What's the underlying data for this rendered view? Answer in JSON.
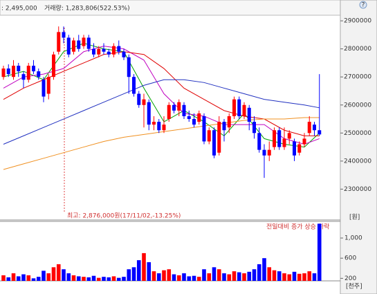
{
  "chart_data": {
    "type": "candlestick",
    "header": {
      "price": ": 2,495,000",
      "volume": "거래량: 1,283,806(522.53%)"
    },
    "price_unit": "[원]",
    "volume_unit": "[천주]",
    "annotation": "최고: 2,876,000원(17/11/02,-13.25%)",
    "volume_legend": "전일대비 증가 상승 하락",
    "up_color": "#ff0000",
    "down_color": "#0000ff",
    "open": [
      2700000,
      2730000,
      2700000,
      2740000,
      2710000,
      2690000,
      2740000,
      2720000,
      2690000,
      2640000,
      2700000,
      2790000,
      2860000,
      2840000,
      2790000,
      2830000,
      2810000,
      2840000,
      2800000,
      2780000,
      2800000,
      2790000,
      2780000,
      2810000,
      2790000,
      2770000,
      2700000,
      2640000,
      2600000,
      2610000,
      2530000,
      2540000,
      2510000,
      2550000,
      2600000,
      2580000,
      2600000,
      2560000,
      2550000,
      2540000,
      2560000,
      2470000,
      2510000,
      2430000,
      2540000,
      2520000,
      2560000,
      2620000,
      2560000,
      2590000,
      2540000,
      2500000,
      2440000,
      2420000,
      2450000,
      2510000,
      2450000,
      2480000,
      2470000,
      2430000,
      2460000,
      2500000,
      2530000,
      2510000
    ],
    "high": [
      2740000,
      2745000,
      2760000,
      2750000,
      2720000,
      2750000,
      2760000,
      2730000,
      2700000,
      2710000,
      2790000,
      2880000,
      2880000,
      2850000,
      2840000,
      2850000,
      2850000,
      2850000,
      2820000,
      2810000,
      2820000,
      2800000,
      2820000,
      2830000,
      2800000,
      2780000,
      2710000,
      2650000,
      2640000,
      2620000,
      2560000,
      2550000,
      2560000,
      2610000,
      2610000,
      2620000,
      2610000,
      2580000,
      2570000,
      2580000,
      2570000,
      2520000,
      2520000,
      2560000,
      2550000,
      2570000,
      2630000,
      2630000,
      2610000,
      2600000,
      2560000,
      2520000,
      2460000,
      2470000,
      2520000,
      2520000,
      2520000,
      2510000,
      2480000,
      2470000,
      2500000,
      2560000,
      2540000,
      2710000
    ],
    "low": [
      2690000,
      2700000,
      2690000,
      2700000,
      2660000,
      2680000,
      2710000,
      2690000,
      2610000,
      2620000,
      2690000,
      2780000,
      2820000,
      2770000,
      2780000,
      2790000,
      2800000,
      2790000,
      2770000,
      2770000,
      2780000,
      2770000,
      2770000,
      2780000,
      2760000,
      2640000,
      2630000,
      2590000,
      2520000,
      2510000,
      2510000,
      2500000,
      2500000,
      2540000,
      2570000,
      2560000,
      2550000,
      2540000,
      2520000,
      2530000,
      2460000,
      2460000,
      2410000,
      2420000,
      2470000,
      2500000,
      2550000,
      2550000,
      2550000,
      2510000,
      2480000,
      2430000,
      2340000,
      2400000,
      2440000,
      2440000,
      2440000,
      2460000,
      2400000,
      2420000,
      2450000,
      2490000,
      2490000,
      2490000
    ],
    "close": [
      2730000,
      2710000,
      2740000,
      2720000,
      2690000,
      2740000,
      2720000,
      2700000,
      2630000,
      2700000,
      2780000,
      2860000,
      2840000,
      2780000,
      2830000,
      2800000,
      2840000,
      2800000,
      2780000,
      2800000,
      2790000,
      2780000,
      2810000,
      2790000,
      2770000,
      2700000,
      2640000,
      2600000,
      2620000,
      2530000,
      2540000,
      2510000,
      2530000,
      2600000,
      2580000,
      2610000,
      2560000,
      2550000,
      2530000,
      2570000,
      2470000,
      2510000,
      2420000,
      2540000,
      2510000,
      2560000,
      2620000,
      2560000,
      2600000,
      2540000,
      2500000,
      2440000,
      2420000,
      2440000,
      2510000,
      2450000,
      2480000,
      2500000,
      2420000,
      2460000,
      2480000,
      2540000,
      2510000,
      2495000
    ],
    "volume": [
      260,
      220,
      300,
      240,
      280,
      260,
      200,
      230,
      350,
      300,
      420,
      480,
      380,
      300,
      260,
      240,
      230,
      220,
      250,
      210,
      230,
      220,
      240,
      210,
      230,
      380,
      420,
      560,
      700,
      520,
      340,
      300,
      360,
      380,
      280,
      260,
      300,
      240,
      250,
      230,
      380,
      300,
      420,
      380,
      300,
      280,
      340,
      320,
      300,
      330,
      380,
      480,
      600,
      420,
      360,
      340,
      300,
      280,
      330,
      290,
      300,
      340,
      300,
      1284
    ],
    "ma_index": [
      0,
      4,
      8,
      12,
      16,
      20,
      24,
      28,
      32,
      36,
      40,
      44,
      48,
      52,
      56,
      60,
      63
    ],
    "moving_averages": [
      {
        "color": "#00a000",
        "values": [
          2700000,
          2720000,
          2690000,
          2790000,
          2820000,
          2800000,
          2790000,
          2660000,
          2540000,
          2580000,
          2540000,
          2490000,
          2570000,
          2480000,
          2460000,
          2450000,
          2500000
        ]
      },
      {
        "color": "#c000c0",
        "values": [
          2660000,
          2700000,
          2710000,
          2730000,
          2790000,
          2810000,
          2800000,
          2760000,
          2640000,
          2570000,
          2560000,
          2530000,
          2530000,
          2530000,
          2480000,
          2460000,
          2480000
        ]
      },
      {
        "color": "#e00000",
        "values": [
          2620000,
          2660000,
          2690000,
          2720000,
          2750000,
          2780000,
          2790000,
          2780000,
          2730000,
          2660000,
          2620000,
          2580000,
          2560000,
          2550000,
          2510000,
          2490000,
          2490000
        ]
      },
      {
        "color": "#2030c0",
        "values": [
          2460000,
          2490000,
          2520000,
          2550000,
          2580000,
          2610000,
          2640000,
          2670000,
          2690000,
          2690000,
          2680000,
          2660000,
          2640000,
          2620000,
          2610000,
          2600000,
          2590000
        ]
      },
      {
        "color": "#f09020",
        "values": [
          2370000,
          2390000,
          2410000,
          2430000,
          2450000,
          2470000,
          2485000,
          2495000,
          2505000,
          2515000,
          2525000,
          2535000,
          2545000,
          2550000,
          2550000,
          2555000,
          2555000
        ]
      }
    ],
    "ylim": [
      2190000,
      2920000
    ],
    "yticks": [
      2300000,
      2400000,
      2500000,
      2600000,
      2700000,
      2800000,
      2900000
    ],
    "vlim": [
      150,
      1330
    ],
    "vticks": [
      {
        "value": 200,
        "label": "200"
      },
      600,
      {
        "value": 1000,
        "label": "1,000"
      }
    ]
  }
}
